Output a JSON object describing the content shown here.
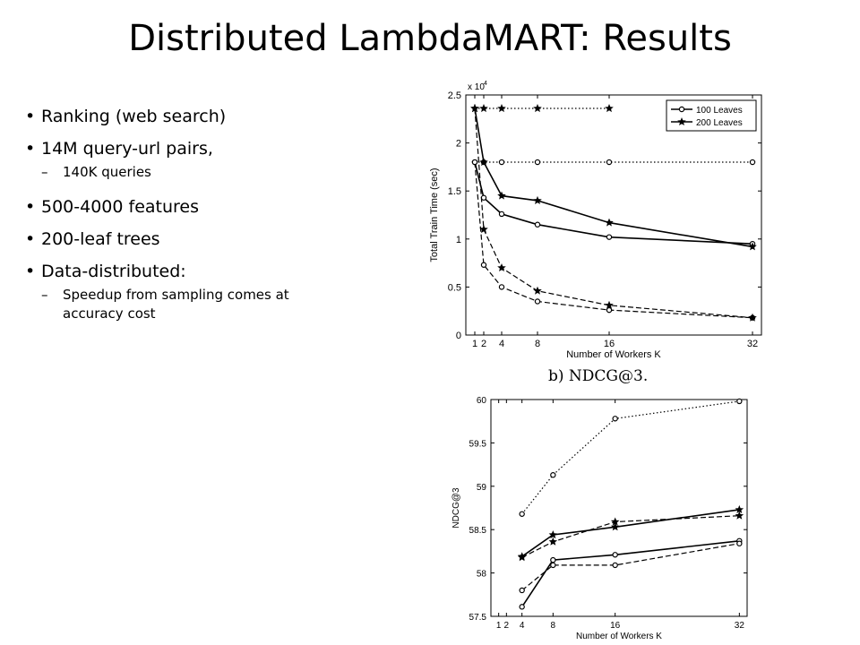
{
  "slide": {
    "title": "Distributed LambdaMART:  Results",
    "bullets": [
      {
        "level": 1,
        "text": "Ranking (web search)"
      },
      {
        "level": 1,
        "text": "14M query-url pairs,"
      },
      {
        "level": 2,
        "text": "140K queries"
      },
      {
        "level": 1,
        "text": "500-4000 features"
      },
      {
        "level": 1,
        "text": "200-leaf trees"
      },
      {
        "level": 1,
        "text": "Data-distributed:"
      },
      {
        "level": 2,
        "text": "Speedup from sampling comes at accuracy cost"
      }
    ],
    "subcaption": "b) NDCG@3."
  },
  "chart_data": [
    {
      "type": "line",
      "xlabel": "Number of Workers K",
      "ylabel": "Total Train Time (sec)",
      "y_multiplier_label": "x 10",
      "y_multiplier_exp": "4",
      "xlim": [
        0,
        33
      ],
      "ylim": [
        0,
        2.5
      ],
      "xticks": [
        1,
        2,
        4,
        8,
        16,
        32
      ],
      "yticks": [
        0,
        0.5,
        1,
        1.5,
        2,
        2.5
      ],
      "ytick_labels": [
        "0",
        "0.5",
        "1",
        "1.5",
        "2",
        "2.5"
      ],
      "legend": {
        "position": "top-right",
        "entries": [
          {
            "name": "100 Leaves",
            "marker": "circle"
          },
          {
            "name": "200 Leaves",
            "marker": "star"
          }
        ]
      },
      "series": [
        {
          "name": "",
          "marker": "circle",
          "style": "dotted",
          "x": [
            1,
            2,
            4,
            8,
            16,
            32
          ],
          "y": [
            1.8,
            1.8,
            1.8,
            1.8,
            1.8,
            1.8
          ]
        },
        {
          "name": "",
          "marker": "star",
          "style": "dotted",
          "x": [
            1,
            2,
            4,
            8,
            16
          ],
          "y": [
            2.36,
            2.36,
            2.36,
            2.36,
            2.36
          ]
        },
        {
          "name": "100 Leaves",
          "marker": "circle",
          "style": "solid",
          "x": [
            1,
            2,
            4,
            8,
            16,
            32
          ],
          "y": [
            1.8,
            1.43,
            1.26,
            1.15,
            1.02,
            0.95
          ]
        },
        {
          "name": "200 Leaves",
          "marker": "star",
          "style": "solid",
          "x": [
            1,
            2,
            4,
            8,
            16,
            32
          ],
          "y": [
            2.36,
            1.8,
            1.45,
            1.4,
            1.17,
            0.92
          ]
        },
        {
          "name": "",
          "marker": "circle",
          "style": "dashed",
          "x": [
            1,
            2,
            4,
            8,
            16,
            32
          ],
          "y": [
            1.8,
            0.73,
            0.5,
            0.35,
            0.26,
            0.18
          ]
        },
        {
          "name": "",
          "marker": "star",
          "style": "dashed",
          "x": [
            1,
            2,
            4,
            8,
            16,
            32
          ],
          "y": [
            2.36,
            1.1,
            0.7,
            0.46,
            0.31,
            0.18
          ]
        }
      ]
    },
    {
      "type": "line",
      "xlabel": "Number of Workers K",
      "ylabel": "NDCG@3",
      "xlim": [
        0,
        33
      ],
      "ylim": [
        57.5,
        60
      ],
      "xticks": [
        1,
        2,
        4,
        8,
        16,
        32
      ],
      "yticks": [
        57.5,
        58,
        58.5,
        59,
        59.5,
        60
      ],
      "ytick_labels": [
        "57.5",
        "58",
        "58.5",
        "59",
        "59.5",
        "60"
      ],
      "series": [
        {
          "name": "",
          "marker": "circle",
          "style": "dotted",
          "x": [
            4,
            8,
            16,
            32
          ],
          "y": [
            58.68,
            59.13,
            59.78,
            59.98
          ]
        },
        {
          "name": "",
          "marker": "star",
          "style": "solid",
          "x": [
            4,
            8,
            16,
            32
          ],
          "y": [
            58.19,
            58.44,
            58.53,
            58.73
          ]
        },
        {
          "name": "",
          "marker": "star",
          "style": "dashed",
          "x": [
            4,
            8,
            16,
            32
          ],
          "y": [
            58.18,
            58.36,
            58.59,
            58.66
          ]
        },
        {
          "name": "",
          "marker": "circle",
          "style": "solid",
          "x": [
            4,
            8,
            16,
            32
          ],
          "y": [
            57.61,
            58.15,
            58.21,
            58.37
          ]
        },
        {
          "name": "",
          "marker": "circle",
          "style": "dashed",
          "x": [
            4,
            8,
            16,
            32
          ],
          "y": [
            57.8,
            58.09,
            58.09,
            58.34
          ]
        }
      ]
    }
  ]
}
